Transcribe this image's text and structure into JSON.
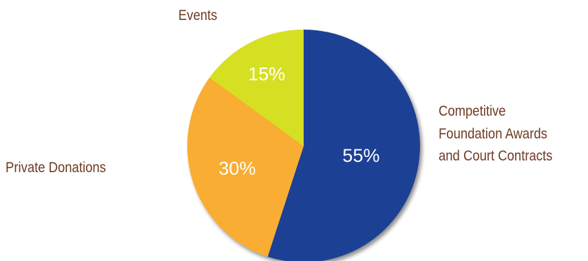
{
  "chart_data": {
    "type": "pie",
    "slices": [
      {
        "label_lines": [
          "Competitive",
          "Foundation Awards",
          "and Court Contracts"
        ],
        "value": 55,
        "value_label": "55%",
        "color": "#1d3f94"
      },
      {
        "label_lines": [
          "Private Donations"
        ],
        "value": 30,
        "value_label": "30%",
        "color": "#f9ad33"
      },
      {
        "label_lines": [
          "Events"
        ],
        "value": 15,
        "value_label": "15%",
        "color": "#d6e023"
      }
    ],
    "start": "12 o'clock",
    "direction": "clockwise",
    "label_color": "#6e3a23",
    "value_label_color": "#ffffff",
    "shadow": true
  }
}
